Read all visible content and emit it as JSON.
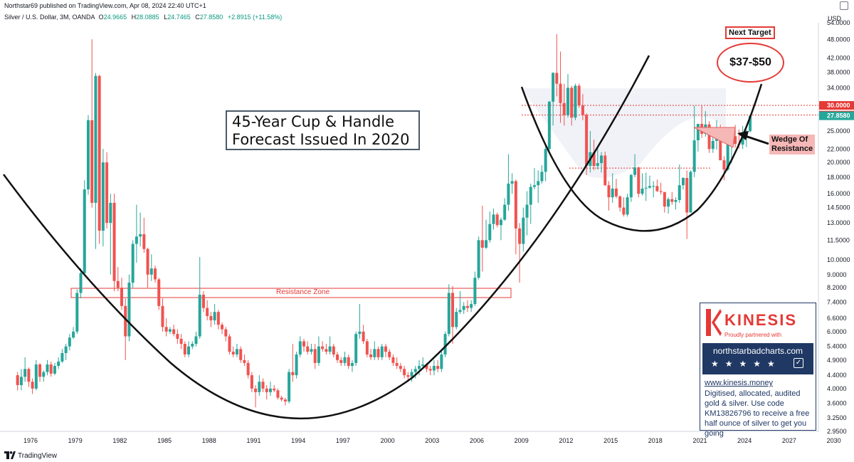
{
  "header": {
    "published": "Northstar69 published on TradingView.com, Apr 08, 2024 22:40 UTC+1",
    "symbol": "Silver / U.S. Dollar, 3M, OANDA",
    "ohlc": [
      {
        "label": "O",
        "value": "24.9665"
      },
      {
        "label": "H",
        "value": "28.0885"
      },
      {
        "label": "L",
        "value": "24.7465"
      },
      {
        "label": "C",
        "value": "27.8580"
      },
      {
        "label": "",
        "value": "+2.8915 (+11.58%)"
      }
    ],
    "currency": "USD"
  },
  "footer": {
    "brand": "TradingView"
  },
  "annotations": {
    "title_line1": "45-Year Cup & Handle",
    "title_line2": "Forecast Issued In 2020",
    "next_target": "Next Target",
    "target_range": "$37-$50",
    "wedge_line1": "Wedge Of",
    "wedge_line2": "Resistance",
    "resistance_zone": "Resistance Zone"
  },
  "ad": {
    "brand": "KINESIS",
    "partner": "Proudly partnered with",
    "site": "northstarbadcharts.com",
    "url": "www.kinesis.money",
    "text": "Digitised, allocated, audited gold & silver. Use code KM13826796 to receive a free half ounce of silver to get you going"
  },
  "colors": {
    "up": "#26a69a",
    "down": "#ef5350",
    "accent": "#e53935",
    "navy": "#1f3864",
    "price_label": "#e53935",
    "last_price_label": "#26a69a"
  },
  "chart_data": {
    "type": "candlestick",
    "scale": "log",
    "interval": "3M",
    "x_ticks": [
      "1976",
      "1979",
      "1982",
      "1985",
      "1988",
      "1991",
      "1994",
      "1997",
      "2000",
      "2003",
      "2006",
      "2009",
      "2012",
      "2015",
      "2018",
      "2021",
      "2024",
      "2027",
      "2030"
    ],
    "y_ticks": [
      "54.0000",
      "48.0000",
      "42.0000",
      "38.0000",
      "34.0000",
      "30.0000",
      "28.0000",
      "25.0000",
      "22.0000",
      "20.0000",
      "18.0000",
      "16.0000",
      "14.5000",
      "13.0000",
      "11.5000",
      "10.0000",
      "9.0000",
      "8.2000",
      "7.4000",
      "6.6000",
      "6.0000",
      "5.4000",
      "4.9000",
      "4.4000",
      "4.0000",
      "3.6000",
      "3.2500",
      "2.9500"
    ],
    "y_values": [
      54,
      48,
      42,
      38,
      34,
      30,
      28,
      25,
      22,
      20,
      18,
      16,
      14.5,
      13,
      11.5,
      10,
      9,
      8.2,
      7.4,
      6.6,
      6,
      5.4,
      4.9,
      4.4,
      4.0,
      3.6,
      3.25,
      2.95
    ],
    "price_labels": [
      {
        "text": "30.0000",
        "value": 30,
        "kind": "level"
      },
      {
        "text": "28.0000",
        "value": 28,
        "kind": "level"
      },
      {
        "text": "27.8580",
        "value": 27.858,
        "kind": "last"
      }
    ],
    "series": [
      [
        1975.0,
        4.4,
        4.5,
        3.95,
        4.1
      ],
      [
        1975.25,
        4.1,
        4.6,
        3.95,
        4.35
      ],
      [
        1975.5,
        4.35,
        5.0,
        4.2,
        4.6
      ],
      [
        1975.75,
        4.6,
        4.65,
        4.05,
        4.2
      ],
      [
        1976.0,
        4.2,
        4.3,
        3.85,
        4.0
      ],
      [
        1976.25,
        4.0,
        4.9,
        3.95,
        4.75
      ],
      [
        1976.5,
        4.75,
        4.8,
        4.2,
        4.35
      ],
      [
        1976.75,
        4.35,
        4.55,
        4.2,
        4.5
      ],
      [
        1977.0,
        4.5,
        4.9,
        4.4,
        4.75
      ],
      [
        1977.25,
        4.75,
        4.85,
        4.35,
        4.45
      ],
      [
        1977.5,
        4.45,
        4.8,
        4.4,
        4.7
      ],
      [
        1977.75,
        4.7,
        5.0,
        4.6,
        4.85
      ],
      [
        1978.0,
        4.85,
        5.3,
        4.8,
        5.15
      ],
      [
        1978.25,
        5.15,
        5.5,
        4.9,
        5.4
      ],
      [
        1978.5,
        5.4,
        5.9,
        5.25,
        5.75
      ],
      [
        1978.75,
        5.75,
        6.2,
        5.7,
        6.0
      ],
      [
        1979.0,
        6.0,
        8.1,
        5.9,
        7.9
      ],
      [
        1979.25,
        7.9,
        9.4,
        7.6,
        9.1
      ],
      [
        1979.5,
        9.1,
        17.6,
        9.0,
        16.5
      ],
      [
        1979.75,
        16.5,
        28.0,
        15.9,
        27.0
      ],
      [
        1980.0,
        27.0,
        48.0,
        14.5,
        15.0
      ],
      [
        1980.25,
        15.0,
        37.8,
        10.8,
        37.0
      ],
      [
        1980.5,
        37.0,
        37.3,
        11.2,
        12.3
      ],
      [
        1980.75,
        12.3,
        22.0,
        11.0,
        20.0
      ],
      [
        1981.0,
        20.0,
        21.5,
        12.5,
        13.0
      ],
      [
        1981.25,
        13.0,
        16.0,
        9.0,
        15.0
      ],
      [
        1981.5,
        15.0,
        16.0,
        8.0,
        8.6
      ],
      [
        1981.75,
        8.6,
        9.5,
        8.0,
        8.2
      ],
      [
        1982.0,
        8.2,
        8.8,
        7.0,
        7.2
      ],
      [
        1982.25,
        7.2,
        7.6,
        4.9,
        5.8
      ],
      [
        1982.5,
        5.8,
        9.0,
        5.6,
        8.5
      ],
      [
        1982.75,
        8.5,
        11.5,
        8.2,
        11.2
      ],
      [
        1983.0,
        11.2,
        14.8,
        9.8,
        11.8
      ],
      [
        1983.25,
        11.8,
        14.0,
        11.0,
        12.0
      ],
      [
        1983.5,
        12.0,
        13.5,
        10.5,
        10.8
      ],
      [
        1983.75,
        10.8,
        10.9,
        8.2,
        9.0
      ],
      [
        1984.0,
        9.0,
        10.4,
        8.6,
        9.4
      ],
      [
        1984.25,
        9.4,
        9.6,
        8.5,
        8.7
      ],
      [
        1984.5,
        8.7,
        8.8,
        7.0,
        7.2
      ],
      [
        1984.75,
        7.2,
        7.6,
        6.0,
        6.2
      ],
      [
        1985.0,
        6.2,
        6.6,
        5.8,
        6.0
      ],
      [
        1985.25,
        6.0,
        6.2,
        5.9,
        6.1
      ],
      [
        1985.5,
        6.1,
        6.3,
        5.8,
        5.9
      ],
      [
        1985.75,
        5.9,
        6.1,
        5.5,
        5.7
      ],
      [
        1986.0,
        5.7,
        5.9,
        5.3,
        5.5
      ],
      [
        1986.25,
        5.5,
        5.6,
        5.0,
        5.1
      ],
      [
        1986.5,
        5.1,
        5.6,
        5.0,
        5.4
      ],
      [
        1986.75,
        5.4,
        5.6,
        5.3,
        5.5
      ],
      [
        1987.0,
        5.5,
        6.0,
        5.4,
        5.8
      ],
      [
        1987.25,
        5.8,
        10.2,
        5.7,
        7.8
      ],
      [
        1987.5,
        7.8,
        8.0,
        6.9,
        7.1
      ],
      [
        1987.75,
        7.1,
        7.5,
        6.5,
        6.7
      ],
      [
        1988.0,
        6.7,
        6.9,
        6.2,
        6.5
      ],
      [
        1988.25,
        6.5,
        7.3,
        6.3,
        6.9
      ],
      [
        1988.5,
        6.9,
        7.0,
        6.1,
        6.3
      ],
      [
        1988.75,
        6.3,
        6.4,
        5.9,
        6.1
      ],
      [
        1989.0,
        6.1,
        6.2,
        5.6,
        5.8
      ],
      [
        1989.25,
        5.8,
        5.9,
        5.1,
        5.2
      ],
      [
        1989.5,
        5.2,
        5.4,
        5.0,
        5.1
      ],
      [
        1989.75,
        5.1,
        5.5,
        5.0,
        5.3
      ],
      [
        1990.0,
        5.3,
        5.4,
        4.8,
        4.9
      ],
      [
        1990.25,
        4.9,
        5.1,
        4.7,
        4.8
      ],
      [
        1990.5,
        4.8,
        4.9,
        4.3,
        4.4
      ],
      [
        1990.75,
        4.4,
        4.5,
        3.9,
        4.0
      ],
      [
        1991.0,
        4.0,
        4.1,
        3.5,
        3.9
      ],
      [
        1991.25,
        3.9,
        4.4,
        3.8,
        4.2
      ],
      [
        1991.5,
        4.2,
        4.3,
        3.9,
        4.0
      ],
      [
        1991.75,
        4.0,
        4.1,
        3.7,
        3.9
      ],
      [
        1992.0,
        3.9,
        4.2,
        3.8,
        4.0
      ],
      [
        1992.25,
        4.0,
        4.1,
        3.9,
        3.95
      ],
      [
        1992.5,
        3.95,
        4.0,
        3.7,
        3.75
      ],
      [
        1992.75,
        3.75,
        3.8,
        3.65,
        3.7
      ],
      [
        1993.0,
        3.7,
        3.75,
        3.55,
        3.65
      ],
      [
        1993.25,
        3.65,
        4.6,
        3.6,
        4.5
      ],
      [
        1993.5,
        4.5,
        5.5,
        4.2,
        4.4
      ],
      [
        1993.75,
        4.4,
        5.2,
        4.3,
        5.1
      ],
      [
        1994.0,
        5.1,
        5.8,
        5.0,
        5.6
      ],
      [
        1994.25,
        5.6,
        5.7,
        5.2,
        5.4
      ],
      [
        1994.5,
        5.4,
        5.6,
        5.1,
        5.2
      ],
      [
        1994.75,
        5.2,
        5.5,
        5.1,
        5.3
      ],
      [
        1995.0,
        5.3,
        5.5,
        4.6,
        4.8
      ],
      [
        1995.25,
        4.8,
        5.8,
        4.7,
        5.4
      ],
      [
        1995.5,
        5.4,
        5.6,
        5.2,
        5.3
      ],
      [
        1995.75,
        5.3,
        5.5,
        5.1,
        5.2
      ],
      [
        1996.0,
        5.2,
        5.8,
        5.1,
        5.4
      ],
      [
        1996.25,
        5.4,
        5.5,
        5.0,
        5.1
      ],
      [
        1996.5,
        5.1,
        5.2,
        4.8,
        4.9
      ],
      [
        1996.75,
        4.9,
        5.0,
        4.7,
        4.8
      ],
      [
        1997.0,
        4.8,
        5.2,
        4.7,
        5.0
      ],
      [
        1997.25,
        5.0,
        5.1,
        4.6,
        4.7
      ],
      [
        1997.5,
        4.7,
        4.9,
        4.5,
        4.8
      ],
      [
        1997.75,
        4.8,
        6.0,
        4.7,
        5.9
      ],
      [
        1998.0,
        5.9,
        7.3,
        5.7,
        6.0
      ],
      [
        1998.25,
        6.0,
        6.3,
        5.5,
        5.6
      ],
      [
        1998.5,
        5.6,
        5.7,
        5.0,
        5.1
      ],
      [
        1998.75,
        5.1,
        5.3,
        4.9,
        5.0
      ],
      [
        1999.0,
        5.0,
        5.6,
        4.9,
        5.3
      ],
      [
        1999.25,
        5.3,
        5.4,
        4.9,
        5.0
      ],
      [
        1999.5,
        5.0,
        5.5,
        4.9,
        5.4
      ],
      [
        1999.75,
        5.4,
        5.5,
        5.0,
        5.2
      ],
      [
        2000.0,
        5.2,
        5.3,
        4.9,
        5.0
      ],
      [
        2000.25,
        5.0,
        5.1,
        4.7,
        4.8
      ],
      [
        2000.5,
        4.8,
        5.0,
        4.6,
        4.7
      ],
      [
        2000.75,
        4.7,
        4.8,
        4.5,
        4.6
      ],
      [
        2001.0,
        4.6,
        4.7,
        4.3,
        4.4
      ],
      [
        2001.25,
        4.4,
        4.5,
        4.2,
        4.35
      ],
      [
        2001.5,
        4.35,
        4.6,
        4.2,
        4.5
      ],
      [
        2001.75,
        4.5,
        4.7,
        4.3,
        4.6
      ],
      [
        2002.0,
        4.6,
        4.9,
        4.4,
        4.7
      ],
      [
        2002.25,
        4.7,
        5.0,
        4.6,
        4.75
      ],
      [
        2002.5,
        4.75,
        4.8,
        4.5,
        4.6
      ],
      [
        2002.75,
        4.6,
        4.7,
        4.4,
        4.55
      ],
      [
        2003.0,
        4.55,
        4.9,
        4.4,
        4.7
      ],
      [
        2003.25,
        4.7,
        4.9,
        4.5,
        4.6
      ],
      [
        2003.5,
        4.6,
        5.2,
        4.5,
        5.1
      ],
      [
        2003.75,
        5.1,
        6.0,
        5.0,
        5.9
      ],
      [
        2004.0,
        5.9,
        8.4,
        5.8,
        7.9
      ],
      [
        2004.25,
        7.9,
        8.3,
        5.5,
        6.2
      ],
      [
        2004.5,
        6.2,
        7.1,
        6.1,
        6.9
      ],
      [
        2004.75,
        6.9,
        8.0,
        6.8,
        7.0
      ],
      [
        2005.0,
        7.0,
        7.4,
        6.8,
        7.2
      ],
      [
        2005.25,
        7.2,
        7.5,
        6.9,
        7.1
      ],
      [
        2005.5,
        7.1,
        7.5,
        6.9,
        7.3
      ],
      [
        2005.75,
        7.3,
        9.2,
        7.2,
        8.8
      ],
      [
        2006.0,
        8.8,
        11.8,
        8.7,
        11.5
      ],
      [
        2006.25,
        11.5,
        14.7,
        9.2,
        10.9
      ],
      [
        2006.5,
        10.9,
        13.3,
        10.8,
        11.5
      ],
      [
        2006.75,
        11.5,
        14.1,
        11.3,
        12.9
      ],
      [
        2007.0,
        12.9,
        14.4,
        12.4,
        13.8
      ],
      [
        2007.25,
        13.8,
        14.0,
        12.6,
        12.8
      ],
      [
        2007.5,
        12.8,
        13.5,
        11.5,
        13.3
      ],
      [
        2007.75,
        13.3,
        15.5,
        13.2,
        14.8
      ],
      [
        2008.0,
        14.8,
        21.2,
        14.2,
        17.2
      ],
      [
        2008.25,
        17.2,
        18.5,
        16.0,
        17.5
      ],
      [
        2008.5,
        17.5,
        17.7,
        10.4,
        12.5
      ],
      [
        2008.75,
        12.5,
        13.0,
        8.5,
        11.2
      ],
      [
        2009.0,
        11.2,
        14.5,
        10.6,
        13.5
      ],
      [
        2009.25,
        13.5,
        16.3,
        11.9,
        14.8
      ],
      [
        2009.5,
        14.8,
        17.2,
        12.9,
        16.8
      ],
      [
        2009.75,
        16.8,
        19.2,
        16.5,
        17.0
      ],
      [
        2010.0,
        17.0,
        18.9,
        15.0,
        17.5
      ],
      [
        2010.25,
        17.5,
        19.6,
        17.2,
        18.7
      ],
      [
        2010.5,
        18.7,
        22.5,
        17.5,
        22.0
      ],
      [
        2010.75,
        22.0,
        31.0,
        21.5,
        30.8
      ],
      [
        2011.0,
        30.8,
        38.0,
        26.0,
        37.8
      ],
      [
        2011.25,
        37.8,
        49.8,
        32.0,
        35.0
      ],
      [
        2011.5,
        35.0,
        44.0,
        26.5,
        30.5
      ],
      [
        2011.75,
        30.5,
        35.0,
        26.0,
        28.0
      ],
      [
        2012.0,
        28.0,
        37.5,
        27.5,
        34.0
      ],
      [
        2012.25,
        34.0,
        34.5,
        26.0,
        27.5
      ],
      [
        2012.5,
        27.5,
        35.0,
        27.0,
        34.5
      ],
      [
        2012.75,
        34.5,
        35.0,
        29.5,
        30.0
      ],
      [
        2013.0,
        30.0,
        32.5,
        27.0,
        28.0
      ],
      [
        2013.25,
        28.0,
        28.4,
        18.3,
        19.5
      ],
      [
        2013.5,
        19.5,
        25.0,
        18.6,
        21.5
      ],
      [
        2013.75,
        21.5,
        23.5,
        18.9,
        19.5
      ],
      [
        2014.0,
        19.5,
        22.2,
        19.0,
        19.9
      ],
      [
        2014.25,
        19.9,
        21.5,
        18.6,
        21.0
      ],
      [
        2014.5,
        21.0,
        21.6,
        16.9,
        17.0
      ],
      [
        2014.75,
        17.0,
        17.5,
        14.2,
        15.6
      ],
      [
        2015.0,
        15.6,
        18.5,
        15.0,
        16.6
      ],
      [
        2015.25,
        16.6,
        17.8,
        15.5,
        15.7
      ],
      [
        2015.5,
        15.7,
        15.8,
        14.1,
        14.5
      ],
      [
        2015.75,
        14.5,
        15.6,
        13.6,
        13.8
      ],
      [
        2016.0,
        13.8,
        16.0,
        13.6,
        15.6
      ],
      [
        2016.25,
        15.6,
        18.4,
        15.1,
        18.3
      ],
      [
        2016.5,
        18.3,
        21.2,
        18.0,
        19.3
      ],
      [
        2016.75,
        19.3,
        19.4,
        15.6,
        16.0
      ],
      [
        2017.0,
        16.0,
        18.5,
        15.8,
        16.6
      ],
      [
        2017.25,
        16.6,
        18.6,
        15.2,
        16.7
      ],
      [
        2017.5,
        16.7,
        18.2,
        16.6,
        16.9
      ],
      [
        2017.75,
        16.9,
        17.5,
        15.6,
        16.9
      ],
      [
        2018.0,
        16.9,
        17.7,
        16.2,
        16.3
      ],
      [
        2018.25,
        16.3,
        17.3,
        15.9,
        16.2
      ],
      [
        2018.5,
        16.2,
        16.2,
        14.0,
        14.6
      ],
      [
        2018.75,
        14.6,
        15.6,
        13.9,
        15.4
      ],
      [
        2019.0,
        15.4,
        16.2,
        14.8,
        15.1
      ],
      [
        2019.25,
        15.1,
        15.6,
        14.3,
        15.3
      ],
      [
        2019.5,
        15.3,
        19.7,
        15.0,
        17.0
      ],
      [
        2019.75,
        17.0,
        18.0,
        16.5,
        17.9
      ],
      [
        2020.0,
        17.9,
        18.9,
        11.6,
        14.0
      ],
      [
        2020.25,
        14.0,
        18.9,
        14.0,
        18.7
      ],
      [
        2020.5,
        18.7,
        29.9,
        18.0,
        23.4
      ],
      [
        2020.75,
        23.4,
        26.0,
        21.6,
        26.3
      ],
      [
        2021.0,
        26.3,
        30.1,
        23.8,
        24.5
      ],
      [
        2021.25,
        24.5,
        28.8,
        24.0,
        26.2
      ],
      [
        2021.5,
        26.2,
        26.8,
        21.4,
        22.0
      ],
      [
        2021.75,
        22.0,
        25.4,
        21.4,
        23.3
      ],
      [
        2022.0,
        23.3,
        27.0,
        21.9,
        25.1
      ],
      [
        2022.25,
        25.1,
        26.2,
        20.5,
        20.3
      ],
      [
        2022.5,
        20.3,
        20.9,
        17.6,
        19.0
      ],
      [
        2022.75,
        19.0,
        24.6,
        18.8,
        24.0
      ],
      [
        2023.0,
        24.0,
        24.6,
        19.9,
        24.1
      ],
      [
        2023.25,
        24.1,
        26.1,
        22.2,
        22.8
      ],
      [
        2023.5,
        22.8,
        25.3,
        22.1,
        22.7
      ],
      [
        2023.75,
        22.7,
        25.9,
        22.0,
        23.8
      ],
      [
        2024.0,
        23.8,
        25.2,
        22.3,
        24.97
      ],
      [
        2024.25,
        24.97,
        28.09,
        24.75,
        27.858
      ]
    ]
  }
}
